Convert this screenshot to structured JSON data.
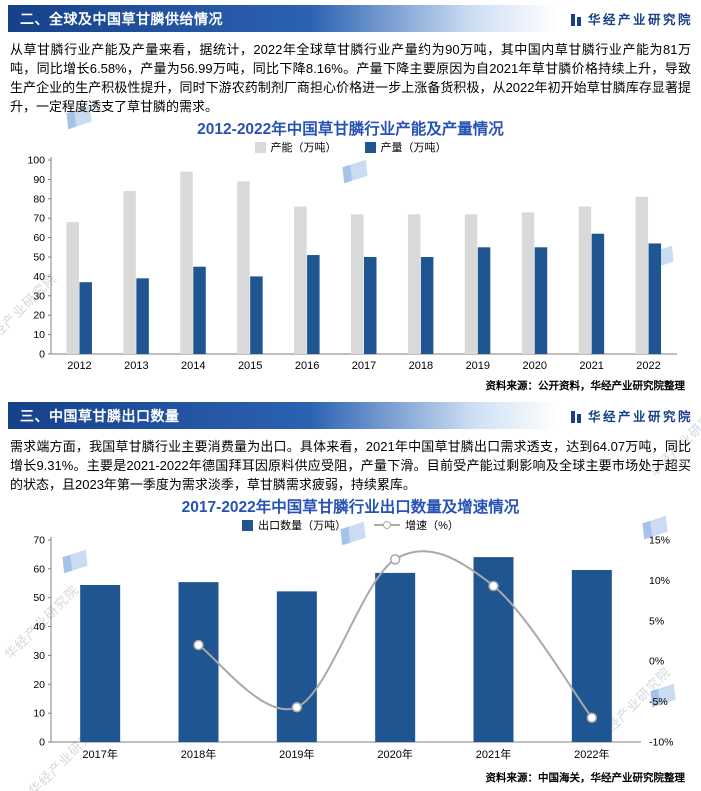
{
  "brand": {
    "logo_text": "华经产业研究院",
    "watermark_text": "华经产业研究院",
    "brand_color": "#16418A"
  },
  "section1": {
    "heading": "二、全球及中国草甘膦供给情况",
    "paragraph": "从草甘膦行业产能及产量来看，据统计，2022年全球草甘膦行业产量约为90万吨，其中国内草甘膦行业产能为81万吨，同比增长6.58%，产量为56.99万吨，同比下降8.16%。产量下降主要原因为自2021年草甘膦价格持续上升，导致生产企业的生产积极性提升，同时下游农药制剂厂商担心价格进一步上涨备货积极，从2022年初开始草甘膦库存显著提升，一定程度透支了草甘膦的需求。",
    "source": "资料来源：公开资料，华经产业研究院整理"
  },
  "section2": {
    "heading": "三、中国草甘膦出口数量",
    "paragraph": "需求端方面，我国草甘膦行业主要消费量为出口。具体来看，2021年中国草甘膦出口需求透支，达到64.07万吨，同比增长9.31%。主要是2021-2022年德国拜耳因原料供应受阻，产量下滑。目前受产能过剩影响及全球主要市场处于超买的状态，且2023年第一季度为需求淡季，草甘膦需求疲弱，持续累库。",
    "source": "资料来源：中国海关，华经产业研究院整理"
  },
  "chart_data": [
    {
      "type": "grouped_bar",
      "title": "2012-2022年中国草甘膦行业产能及产量情况",
      "categories": [
        "2012",
        "2013",
        "2014",
        "2015",
        "2016",
        "2017",
        "2018",
        "2019",
        "2020",
        "2021",
        "2022"
      ],
      "series": [
        {
          "key": "capacity",
          "name": "产能（万吨）",
          "color": "#D9D9D9",
          "values": [
            68,
            84,
            94,
            89,
            76,
            72,
            72,
            72,
            73,
            76,
            81
          ]
        },
        {
          "key": "production",
          "name": "产量（万吨）",
          "color": "#1F5591",
          "values": [
            37,
            39,
            45,
            40,
            51,
            50,
            50,
            55,
            55,
            62,
            57
          ]
        }
      ],
      "ylim": [
        0,
        100
      ],
      "ytick": 10,
      "grid": false,
      "legend_position": "top"
    },
    {
      "type": "bar_line",
      "title": "2017-2022年中国草甘膦行业出口数量及增速情况",
      "categories": [
        "2017年",
        "2018年",
        "2019年",
        "2020年",
        "2021年",
        "2022年"
      ],
      "bar_series": {
        "key": "export",
        "name": "出口数量（万吨）",
        "color": "#1F5591",
        "values": [
          54.4,
          55.4,
          52.2,
          58.6,
          64.07,
          59.6
        ]
      },
      "line_series": {
        "key": "growth",
        "name": "增速（%）",
        "color": "#A9A9A9",
        "style": "line",
        "values": [
          null,
          2.0,
          -5.7,
          12.6,
          9.31,
          -7.0
        ]
      },
      "ylim_left": [
        0,
        70
      ],
      "ytick_left": 10,
      "ylim_right": [
        -10,
        15
      ],
      "ytick_right": 5,
      "grid": false,
      "legend_position": "top"
    }
  ]
}
